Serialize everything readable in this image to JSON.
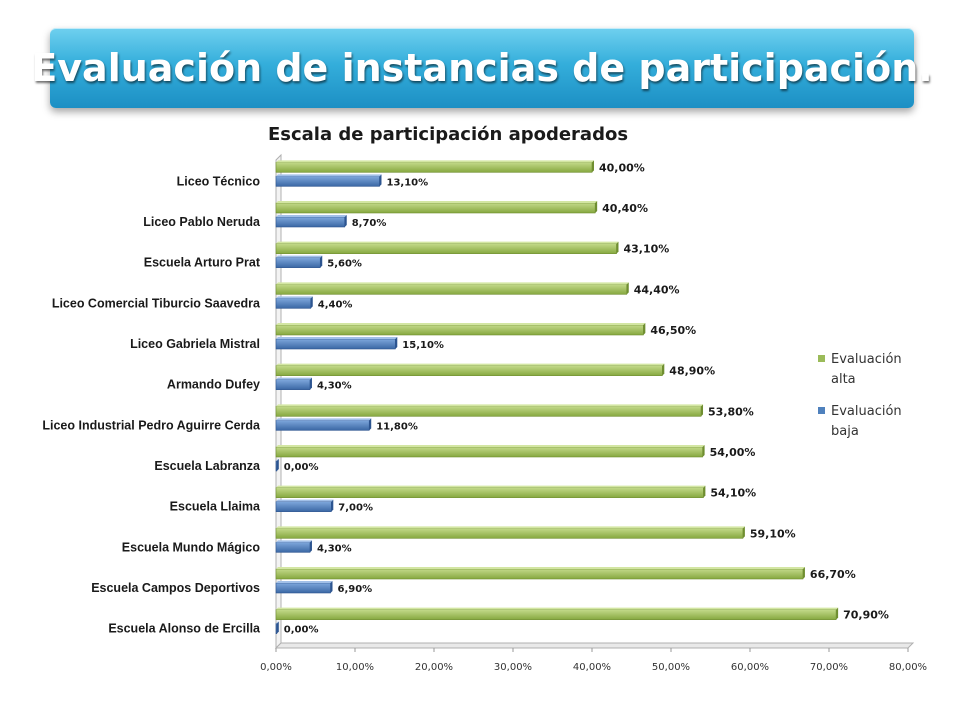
{
  "header": {
    "title": "Evaluación de instancias de participación."
  },
  "chart_data": {
    "type": "bar",
    "orientation": "horizontal",
    "title": "Escala de participación apoderados",
    "categories": [
      "Liceo Técnico",
      "Liceo Pablo Neruda",
      "Escuela Arturo Prat",
      "Liceo Comercial Tiburcio Saavedra",
      "Liceo Gabriela Mistral",
      "Armando Dufey",
      "Liceo Industrial Pedro Aguirre Cerda",
      "Escuela Labranza",
      "Escuela Llaima",
      "Escuela Mundo Mágico",
      "Escuela Campos Deportivos",
      "Escuela Alonso de Ercilla"
    ],
    "series": [
      {
        "name": "Evaluación alta",
        "color": "#9bbb59",
        "values": [
          40.0,
          40.4,
          43.1,
          44.4,
          46.5,
          48.9,
          53.8,
          54.0,
          54.1,
          59.1,
          66.7,
          70.9
        ],
        "labels": [
          "40,00%",
          "40,40%",
          "43,10%",
          "44,40%",
          "46,50%",
          "48,90%",
          "53,80%",
          "54,00%",
          "54,10%",
          "59,10%",
          "66,70%",
          "70,90%"
        ]
      },
      {
        "name": "Evaluación baja",
        "color": "#4f81bd",
        "values": [
          13.1,
          8.7,
          5.6,
          4.4,
          15.1,
          4.3,
          11.8,
          0.0,
          7.0,
          4.3,
          6.9,
          0.0
        ],
        "labels": [
          "13,10%",
          "8,70%",
          "5,60%",
          "4,40%",
          "15,10%",
          "4,30%",
          "11,80%",
          "0,00%",
          "7,00%",
          "4,30%",
          "6,90%",
          "0,00%"
        ]
      }
    ],
    "xlim": [
      0,
      80
    ],
    "xticks": [
      "0,00%",
      "10,00%",
      "20,00%",
      "30,00%",
      "40,00%",
      "50,00%",
      "60,00%",
      "70,00%",
      "80,00%"
    ],
    "grid": false,
    "legend_position": "right"
  }
}
